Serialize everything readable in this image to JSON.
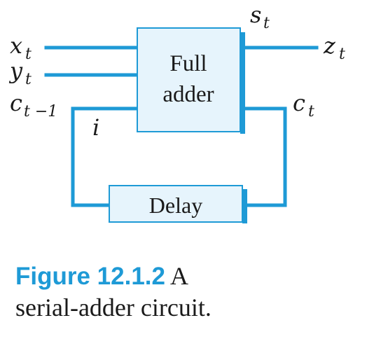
{
  "diagram": {
    "full_adder_label_line1": "Full",
    "full_adder_label_line2": "adder",
    "delay_label": "Delay",
    "inputs": {
      "x": {
        "var": "x",
        "sub": "t"
      },
      "y": {
        "var": "y",
        "sub": "t"
      },
      "c_prev": {
        "var": "c",
        "sub": "t −1"
      }
    },
    "outputs": {
      "s": {
        "var": "s",
        "sub": "t"
      },
      "z": {
        "var": "z",
        "sub": "t"
      },
      "c": {
        "var": "c",
        "sub": "t"
      }
    },
    "node_label": "i",
    "colors": {
      "wire": "#1e9ad6",
      "box_fill": "#e6f4fc",
      "box_border": "#1e9ad6",
      "box_shadow": "#1e9ad6"
    }
  },
  "caption": {
    "figure_number": "Figure 12.1.2",
    "text_line1": "A",
    "text_line2": "serial-adder circuit."
  }
}
